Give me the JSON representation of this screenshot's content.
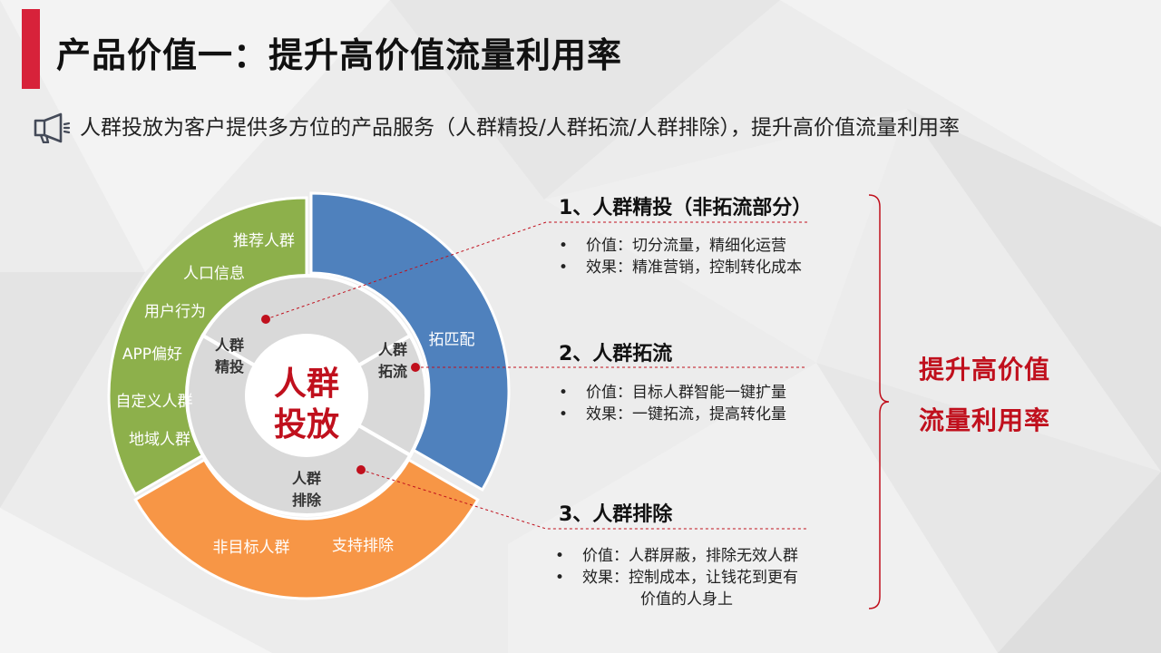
{
  "title": "产品价值一：提升高价值流量利用率",
  "subtitle": "人群投放为客户提供多方位的产品服务（人群精投/人群拓流/人群排除），提升高价值流量利用率",
  "subtitle_icon": "megaphone-icon",
  "colors": {
    "accent": "#d7223a",
    "green": "#8db04b",
    "blue": "#4f81bd",
    "orange": "#f79646",
    "inner": "#d9d9d9",
    "center": "#ffffff",
    "highlight": "#c0101d"
  },
  "diagram": {
    "center_label": [
      "人群",
      "投放"
    ],
    "inner_segments": [
      {
        "label": [
          "人群",
          "精投"
        ],
        "start": 300,
        "end": 420
      },
      {
        "label": [
          "人群",
          "拓流"
        ],
        "start": 60,
        "end": 120
      },
      {
        "label": [
          "人群",
          "排除"
        ],
        "start": 120,
        "end": 300
      }
    ],
    "outer_segments": [
      {
        "name": "green",
        "color": "#8db04b",
        "start": 240,
        "end": 360
      },
      {
        "name": "blue",
        "color": "#4f81bd",
        "start": 0,
        "end": 120
      },
      {
        "name": "orange",
        "color": "#f79646",
        "start": 120,
        "end": 240
      }
    ],
    "green_labels": [
      "推荐人群",
      "人口信息",
      "用户行为",
      "APP偏好",
      "自定义人群",
      "地域人群"
    ],
    "blue_labels": [
      "拓匹配"
    ],
    "orange_labels": [
      "非目标人群",
      "支持排除"
    ]
  },
  "sections": [
    {
      "heading": "1、人群精投（非拓流部分）",
      "bullets": [
        "价值：切分流量，精细化运营",
        "效果：精准营销，控制转化成本"
      ]
    },
    {
      "heading": "2、人群拓流",
      "bullets": [
        "价值：目标人群智能一键扩量",
        "效果：一键拓流，提高转化量"
      ]
    },
    {
      "heading": "3、人群排除",
      "bullets": [
        "价值：人群屏蔽，排除无效人群",
        "效果：控制成本，让钱花到更有"
      ],
      "continuation": "价值的人身上"
    }
  ],
  "result": [
    "提升高价值",
    "流量利用率"
  ]
}
